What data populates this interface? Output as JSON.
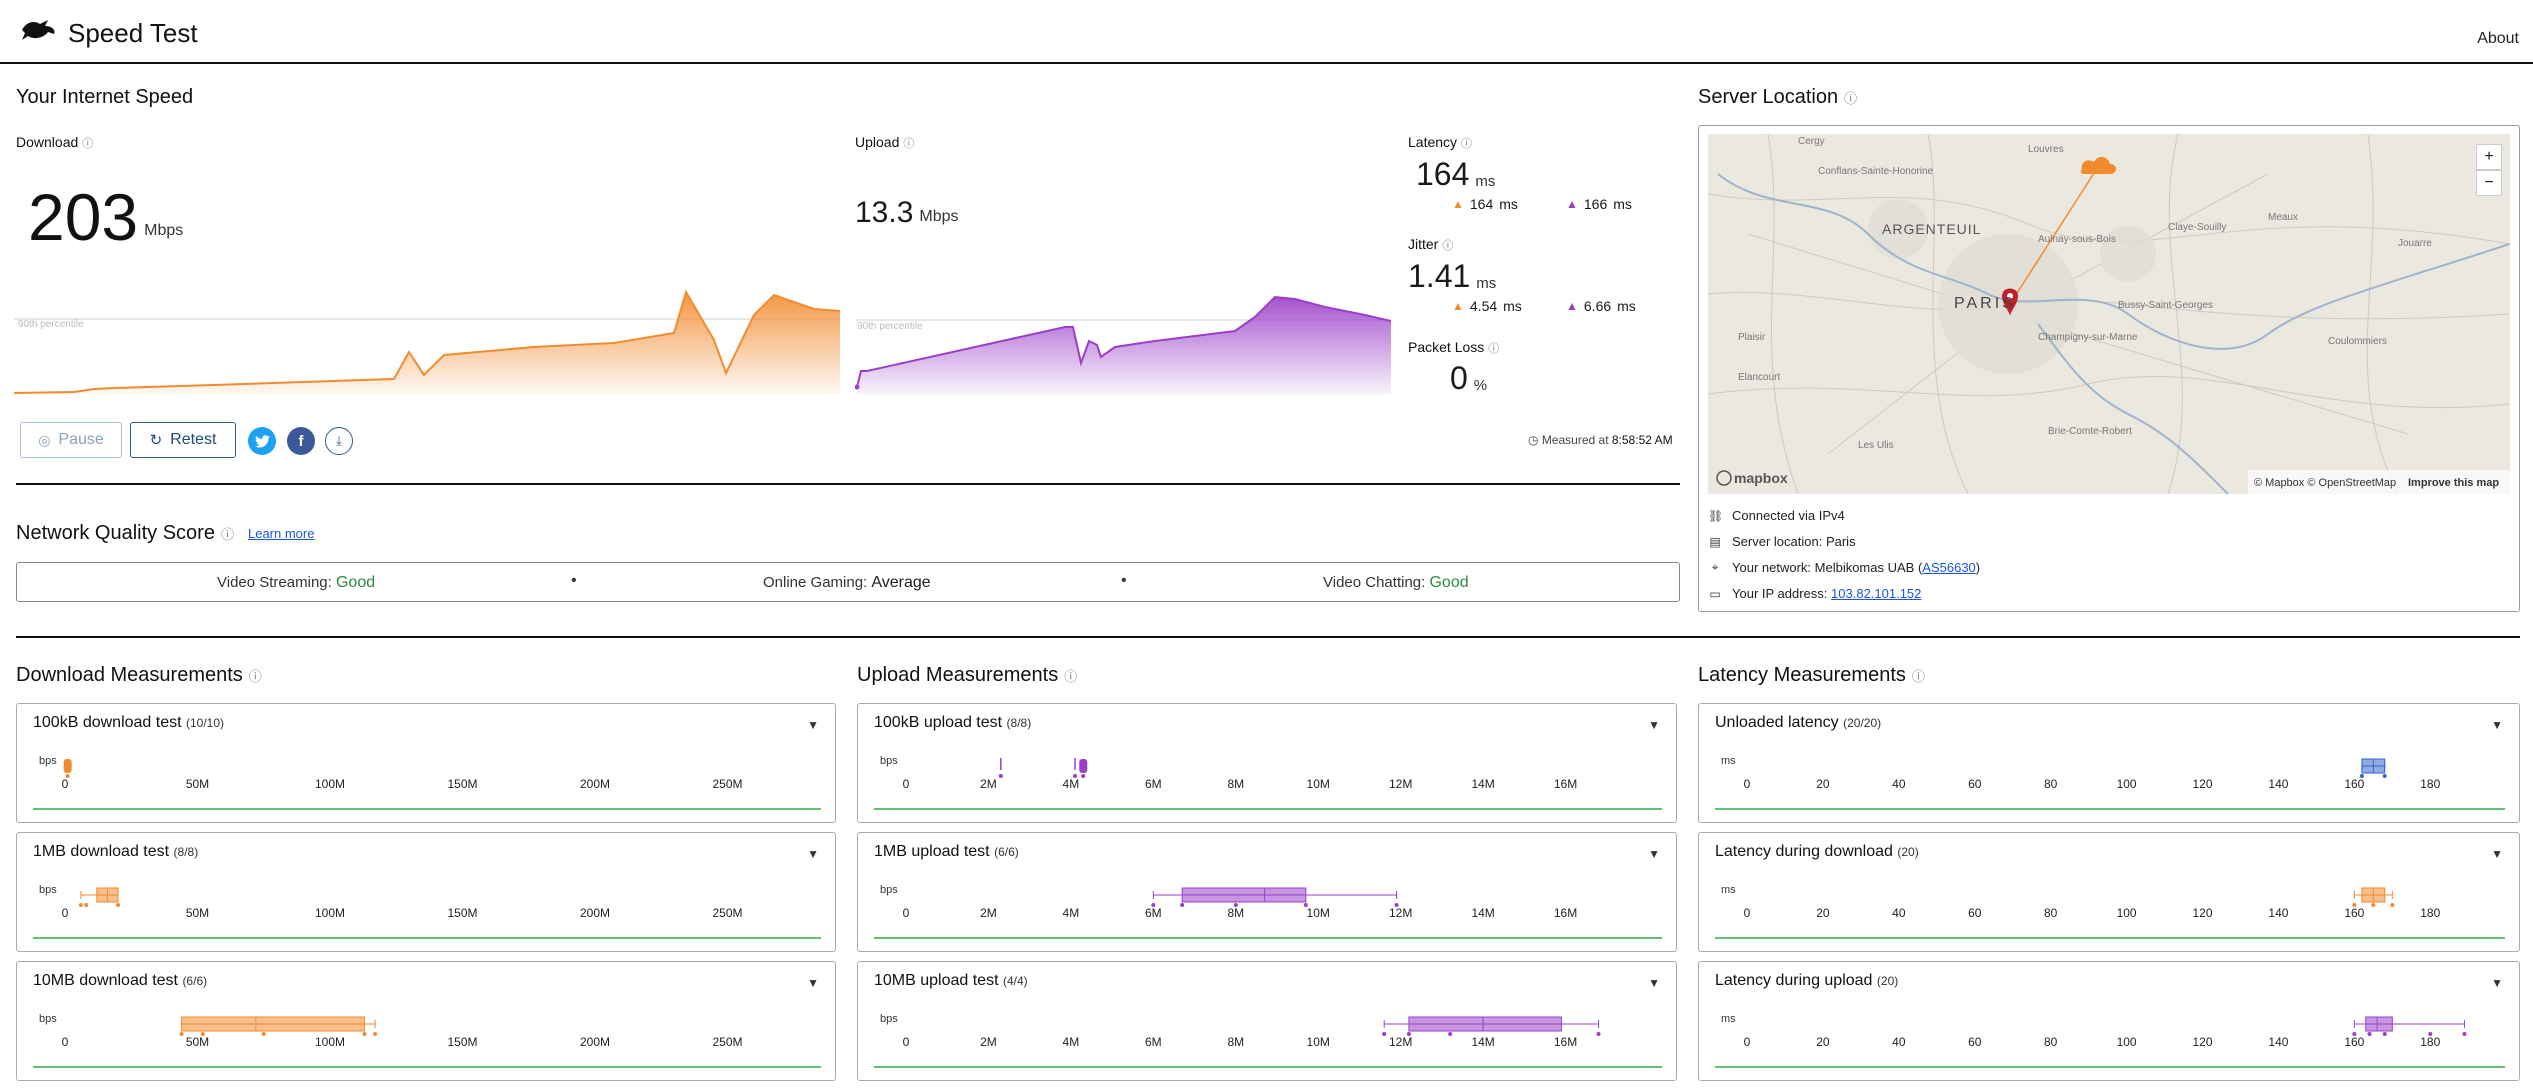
{
  "header": {
    "title": "Speed Test",
    "about_label": "About"
  },
  "speed": {
    "section_title": "Your Internet Speed",
    "download": {
      "label": "Download",
      "value": "203",
      "unit": "Mbps",
      "percentile_label": "90th percentile"
    },
    "upload": {
      "label": "Upload",
      "value": "13.3",
      "unit": "Mbps",
      "percentile_label": "90th percentile"
    },
    "latency": {
      "label": "Latency",
      "value": "164",
      "unit": "ms",
      "down_value": "164",
      "up_value": "166",
      "sub_unit": "ms"
    },
    "jitter": {
      "label": "Jitter",
      "value": "1.41",
      "unit": "ms",
      "down_value": "4.54",
      "up_value": "6.66",
      "sub_unit": "ms"
    },
    "packet_loss": {
      "label": "Packet Loss",
      "value": "0",
      "unit": "%"
    },
    "measured_label": "Measured at",
    "measured_time": "8:58:52 AM",
    "pause_label": "Pause",
    "retest_label": "Retest"
  },
  "quality": {
    "title": "Network Quality Score",
    "learn_more": "Learn more",
    "items": [
      {
        "label": "Video Streaming:",
        "value": "Good"
      },
      {
        "label": "Online Gaming:",
        "value": "Average"
      },
      {
        "label": "Video Chatting:",
        "value": "Good"
      }
    ]
  },
  "server": {
    "title": "Server Location",
    "map_labels": {
      "paris": "PARIS",
      "argenteuil": "ARGENTEUIL",
      "attribution": "© Mapbox © OpenStreetMap",
      "improve": "Improve this map",
      "brand": "mapbox",
      "places": [
        "Cergy",
        "Conflans-Sainte-Honorine",
        "Louvres",
        "Aulnay-sous-Bois",
        "Claye-Souilly",
        "Meaux",
        "Jouarre",
        "Plaisir",
        "Elancourt",
        "Bussy-Saint-Georges",
        "Champigny-sur-Marne",
        "Coulommiers",
        "Brie-Comte-Robert",
        "Les Ulis"
      ]
    },
    "connected": "Connected via IPv4",
    "location_label": "Server location:",
    "location_value": "Paris",
    "network_label": "Your network:",
    "network_value": "Melbikomas UAB (",
    "network_asn": "AS56630",
    "network_close": ")",
    "ip_label": "Your IP address:",
    "ip_value": "103.82.101.152"
  },
  "download_measurements": {
    "title": "Download Measurements",
    "unit": "bps",
    "ticks": [
      "0",
      "50M",
      "100M",
      "150M",
      "200M",
      "250M"
    ],
    "tests": [
      {
        "name": "100kB download test",
        "count": "(10/10)"
      },
      {
        "name": "1MB download test",
        "count": "(8/8)"
      },
      {
        "name": "10MB download test",
        "count": "(6/6)"
      }
    ]
  },
  "upload_measurements": {
    "title": "Upload Measurements",
    "unit": "bps",
    "ticks": [
      "0",
      "2M",
      "4M",
      "6M",
      "8M",
      "10M",
      "12M",
      "14M",
      "16M"
    ],
    "tests": [
      {
        "name": "100kB upload test",
        "count": "(8/8)"
      },
      {
        "name": "1MB upload test",
        "count": "(6/6)"
      },
      {
        "name": "10MB upload test",
        "count": "(4/4)"
      }
    ]
  },
  "latency_measurements": {
    "title": "Latency Measurements",
    "unit": "ms",
    "ticks": [
      "0",
      "20",
      "40",
      "60",
      "80",
      "100",
      "120",
      "140",
      "160",
      "180"
    ],
    "tests": [
      {
        "name": "Unloaded latency",
        "count": "(20/20)"
      },
      {
        "name": "Latency during download",
        "count": "(20)"
      },
      {
        "name": "Latency during upload",
        "count": "(20)"
      }
    ]
  },
  "colors": {
    "download": "#f28a2e",
    "upload": "#9b3fc9",
    "latency": "#3366cc",
    "good": "#2e8b3a",
    "axis_line": "#2eaa4a"
  }
}
